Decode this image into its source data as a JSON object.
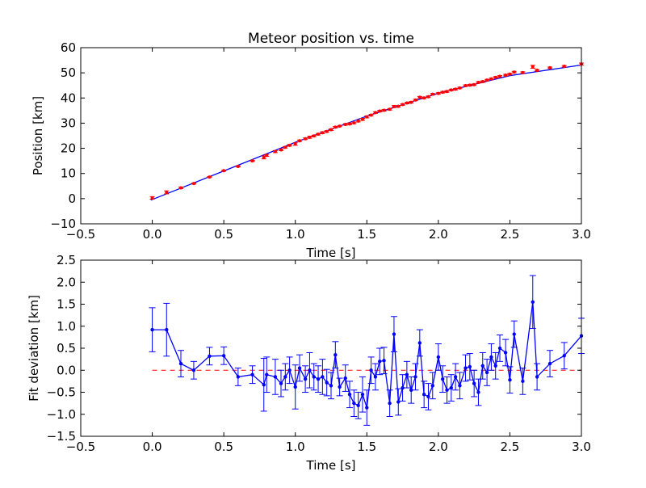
{
  "chart_data": [
    {
      "type": "scatter",
      "title": "Meteor position vs. time",
      "xlabel": "Time [s]",
      "ylabel": "Position [km]",
      "xlim": [
        -0.5,
        3.0
      ],
      "ylim": [
        -10,
        60
      ],
      "xticks": [
        "−0.5",
        "0.0",
        "0.5",
        "1.0",
        "1.5",
        "2.0",
        "2.5",
        "3.0"
      ],
      "yticks": [
        "−10",
        "0",
        "10",
        "20",
        "30",
        "40",
        "50",
        "60"
      ],
      "grid": false,
      "series": [
        {
          "style": "red points with error bars",
          "color": "#ff0000",
          "x": [
            0.0,
            0.1,
            0.2,
            0.29,
            0.4,
            0.5,
            0.6,
            0.7,
            0.78,
            0.8,
            0.86,
            0.9,
            0.93,
            0.96,
            1.0,
            1.03,
            1.07,
            1.1,
            1.13,
            1.16,
            1.19,
            1.22,
            1.25,
            1.28,
            1.31,
            1.35,
            1.38,
            1.41,
            1.44,
            1.47,
            1.5,
            1.53,
            1.56,
            1.59,
            1.62,
            1.66,
            1.69,
            1.72,
            1.75,
            1.78,
            1.81,
            1.84,
            1.87,
            1.9,
            1.93,
            1.96,
            2.0,
            2.03,
            2.06,
            2.09,
            2.12,
            2.15,
            2.19,
            2.22,
            2.25,
            2.28,
            2.31,
            2.34,
            2.37,
            2.4,
            2.43,
            2.47,
            2.5,
            2.53,
            2.59,
            2.66,
            2.69,
            2.78,
            2.88,
            3.0
          ],
          "y": [
            0.3,
            2.5,
            4.3,
            6.0,
            8.6,
            11.1,
            12.8,
            15.0,
            16.4,
            17.2,
            18.7,
            19.4,
            20.4,
            21.2,
            21.7,
            23.0,
            23.8,
            24.4,
            24.9,
            25.6,
            26.2,
            26.7,
            27.4,
            28.4,
            28.8,
            29.5,
            29.7,
            30.1,
            30.8,
            31.5,
            32.5,
            33.2,
            34.2,
            34.8,
            35.1,
            35.5,
            36.6,
            36.7,
            37.4,
            38.0,
            38.3,
            39.2,
            40.3,
            40.0,
            40.5,
            41.5,
            41.8,
            42.3,
            42.6,
            43.2,
            43.5,
            44.0,
            44.9,
            45.1,
            45.3,
            46.2,
            46.5,
            47.1,
            47.6,
            48.2,
            48.6,
            49.1,
            49.5,
            50.3,
            50.1,
            52.4,
            51.0,
            52.0,
            52.6,
            53.5
          ],
          "yerr": [
            0.5,
            0.6,
            0.3,
            0.2,
            0.2,
            0.2,
            0.2,
            0.2,
            0.6,
            0.4,
            0.4,
            0.3,
            0.3,
            0.3,
            0.5,
            0.3,
            0.3,
            0.4,
            0.3,
            0.3,
            0.4,
            0.3,
            0.3,
            0.3,
            0.2,
            0.3,
            0.3,
            0.3,
            0.3,
            0.4,
            0.4,
            0.3,
            0.3,
            0.3,
            0.3,
            0.3,
            0.4,
            0.3,
            0.3,
            0.3,
            0.3,
            0.3,
            0.3,
            0.3,
            0.3,
            0.3,
            0.3,
            0.3,
            0.3,
            0.3,
            0.3,
            0.3,
            0.3,
            0.3,
            0.3,
            0.3,
            0.3,
            0.3,
            0.3,
            0.3,
            0.3,
            0.3,
            0.3,
            0.3,
            0.3,
            0.6,
            0.3,
            0.3,
            0.3,
            0.4
          ]
        },
        {
          "style": "blue fit line",
          "color": "#0000ff",
          "x": [
            -0.01,
            0.5,
            1.0,
            1.5,
            2.0,
            2.5,
            3.0
          ],
          "y": [
            -0.6,
            11.0,
            22.4,
            32.8,
            41.9,
            48.9,
            53.1
          ]
        }
      ]
    },
    {
      "type": "line",
      "xlabel": "Time [s]",
      "ylabel": "Fit deviation [km]",
      "xlim": [
        -0.5,
        3.0
      ],
      "ylim": [
        -1.5,
        2.5
      ],
      "xticks": [
        "−0.5",
        "0.0",
        "0.5",
        "1.0",
        "1.5",
        "2.0",
        "2.5",
        "3.0"
      ],
      "yticks": [
        "−1.5",
        "−1.0",
        "−0.5",
        "0.0",
        "0.5",
        "1.0",
        "1.5",
        "2.0",
        "2.5"
      ],
      "grid": false,
      "reference_line": {
        "y": 0.0,
        "color": "#ff0000",
        "style": "dashed",
        "x_range": [
          0.0,
          3.0
        ]
      },
      "series": [
        {
          "style": "blue line with markers and error bars",
          "color": "#0000ff",
          "x": [
            0.0,
            0.1,
            0.2,
            0.29,
            0.4,
            0.5,
            0.6,
            0.7,
            0.78,
            0.8,
            0.86,
            0.9,
            0.93,
            0.96,
            1.0,
            1.03,
            1.07,
            1.1,
            1.13,
            1.16,
            1.19,
            1.22,
            1.25,
            1.28,
            1.31,
            1.35,
            1.38,
            1.41,
            1.44,
            1.47,
            1.5,
            1.53,
            1.56,
            1.59,
            1.62,
            1.66,
            1.69,
            1.72,
            1.75,
            1.78,
            1.81,
            1.84,
            1.87,
            1.9,
            1.93,
            1.96,
            2.0,
            2.03,
            2.06,
            2.09,
            2.12,
            2.15,
            2.19,
            2.22,
            2.25,
            2.28,
            2.31,
            2.34,
            2.37,
            2.4,
            2.43,
            2.47,
            2.5,
            2.53,
            2.59,
            2.66,
            2.69,
            2.78,
            2.88,
            3.0
          ],
          "y": [
            0.92,
            0.92,
            0.15,
            0.0,
            0.32,
            0.33,
            -0.15,
            -0.1,
            -0.33,
            -0.1,
            -0.15,
            -0.3,
            -0.15,
            0.0,
            -0.38,
            0.05,
            -0.2,
            0.0,
            -0.15,
            -0.2,
            -0.15,
            -0.28,
            -0.35,
            0.35,
            -0.38,
            -0.18,
            -0.55,
            -0.75,
            -0.8,
            -0.55,
            -0.85,
            0.0,
            -0.15,
            0.2,
            0.22,
            -0.75,
            0.82,
            -0.72,
            -0.4,
            -0.1,
            -0.45,
            -0.15,
            0.62,
            -0.55,
            -0.6,
            -0.35,
            0.3,
            -0.2,
            -0.45,
            -0.4,
            -0.15,
            -0.35,
            0.05,
            0.08,
            -0.3,
            -0.5,
            0.1,
            -0.05,
            0.3,
            0.1,
            0.5,
            0.4,
            -0.22,
            0.82,
            -0.25,
            1.55,
            -0.15,
            0.15,
            0.33,
            0.78
          ]
        }
      ]
    }
  ]
}
